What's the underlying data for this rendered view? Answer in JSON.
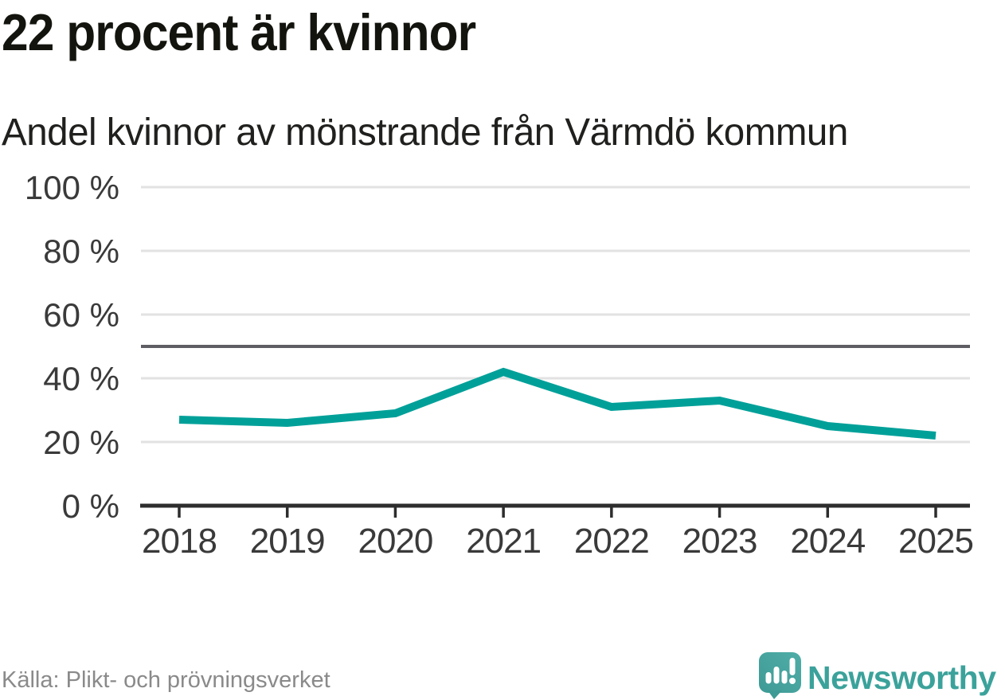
{
  "header": {
    "title": "22 procent är kvinnor",
    "subtitle": "Andel kvinnor av mönstrande från Värmdö kommun"
  },
  "chart_data": {
    "type": "line",
    "title": "Andel kvinnor av mönstrande från Värmdö kommun",
    "categories": [
      "2018",
      "2019",
      "2020",
      "2021",
      "2022",
      "2023",
      "2024",
      "2025"
    ],
    "series": [
      {
        "name": "Andel kvinnor",
        "values": [
          27,
          26,
          29,
          42,
          31,
          33,
          25,
          22
        ]
      }
    ],
    "xlabel": "",
    "ylabel": "",
    "ylim": [
      0,
      100
    ],
    "yticks": [
      0,
      20,
      40,
      60,
      80,
      100
    ],
    "ytick_labels": [
      "0 %",
      "20 %",
      "40 %",
      "60 %",
      "80 %",
      "100 %"
    ],
    "reference_line_y": 50,
    "grid": true,
    "legend": false,
    "line_color": "#00a099"
  },
  "footer": {
    "source": "Källa: Plikt- och prövningsverket",
    "brand": "Newsworthy"
  },
  "colors": {
    "accent_teal": "#00a099",
    "logo_teal_light": "#4fada7",
    "logo_teal_dark": "#3e9a95",
    "brand_text": "#3ba29b",
    "reference_line": "#5d5d63",
    "gridline": "#e2e2e2",
    "axis": "#2d2d2d",
    "title_text": "#14140f",
    "label_text": "#3a3a3a",
    "source_text": "#8a8a8a"
  }
}
